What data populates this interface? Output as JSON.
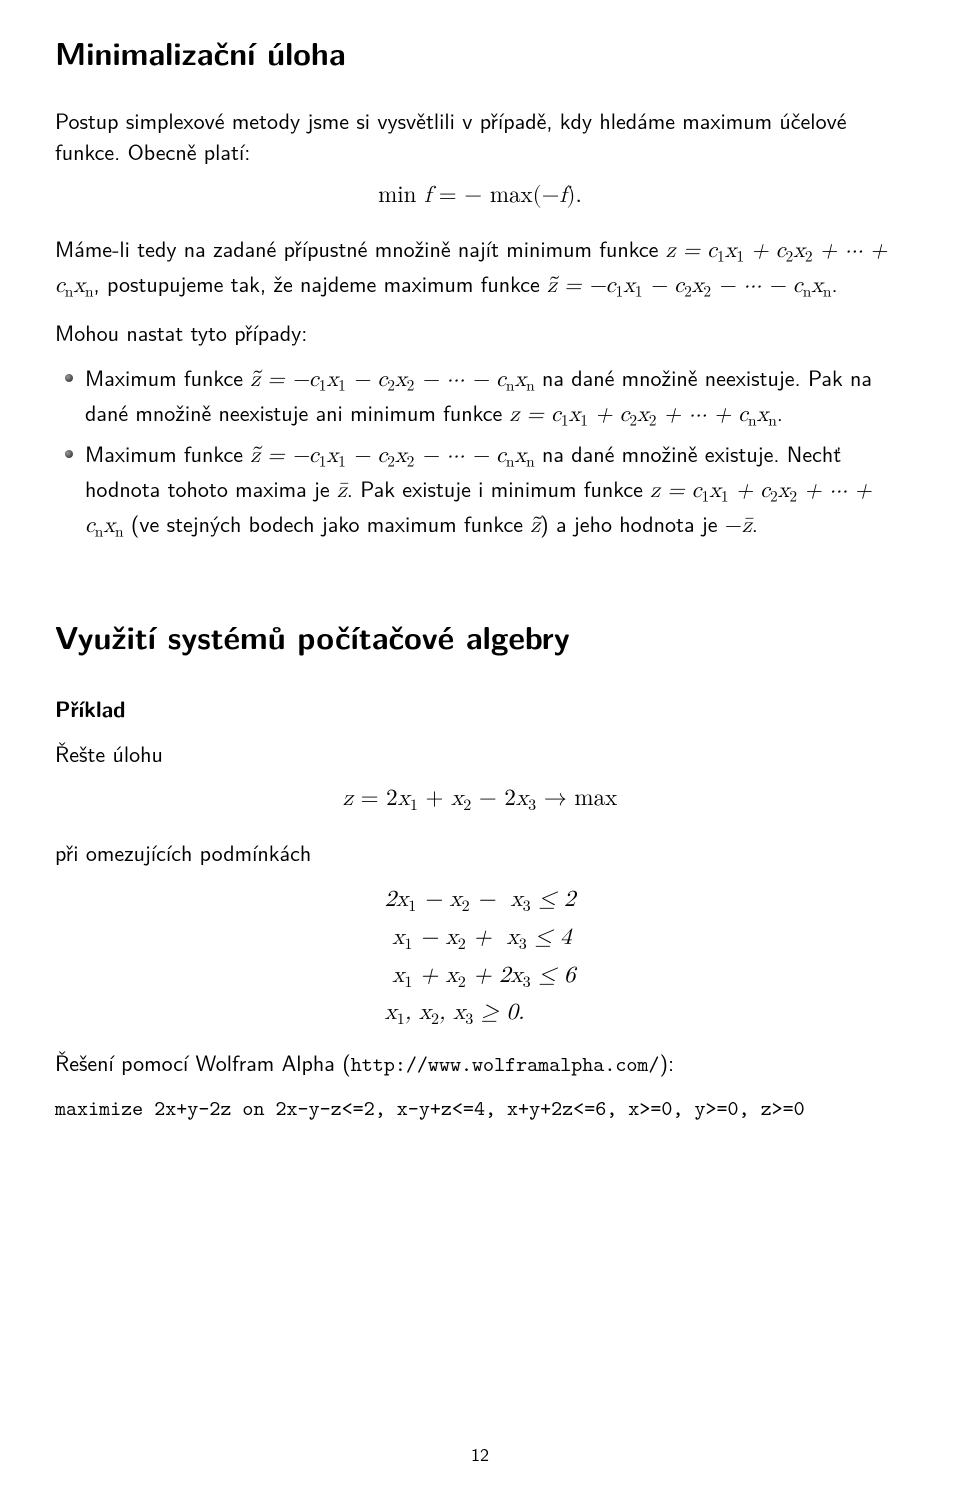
{
  "title": "Minimalizační úloha",
  "intro": "Postup simplexové metody jsme si vysvětlili v případě, kdy hledáme maximum účelové funkce. Obecně platí:",
  "eq1": "min f = − max(−f).",
  "para2_a": "Máme-li tedy na zadané přípustné množině najít minimum funkce ",
  "para2_b": ", postupujeme tak, že najdeme maximum funkce ",
  "cases_lead": "Mohou nastat tyto případy:",
  "bullet1_a": "Maximum funkce ",
  "bullet1_b": " na dané množině neexistuje. Pak na dané množině neexistuje ani minimum funkce ",
  "bullet2_a": "Maximum funkce ",
  "bullet2_b": " na dané množině existuje. Nechť hodnota tohoto maxima je ",
  "bullet2_c": ". Pak existuje i minimum funkce ",
  "bullet2_d": " (ve stejných bodech jako maximum funkce ",
  "bullet2_e": ") a jeho hodnota je ",
  "section2_title": "Využití systémů počítačové algebry",
  "example_label": "Příklad",
  "example_task": "Řešte úlohu",
  "constraints_lead": "při omezujících podmínkách",
  "objective": "z = 2x₁ + x₂ − 2x₃ → max",
  "c1": "2x₁ − x₂ −  x₃ ≤ 2",
  "c2": " x₁ − x₂ +  x₃ ≤ 4",
  "c3": " x₁ + x₂ + 2x₃ ≤ 6",
  "c4": "x₁, x₂, x₃ ≥ 0.",
  "solution_lead_a": "Řešení pomocí Wolfram Alpha (",
  "wolfram_url": "http://www.wolframalpha.com/",
  "solution_lead_b": "):",
  "code": "maximize 2x+y-2z on 2x-y-z<=2, x-y+z<=4, x+y+2z<=6, x>=0, y>=0, z>=0",
  "pagenum": "12"
}
